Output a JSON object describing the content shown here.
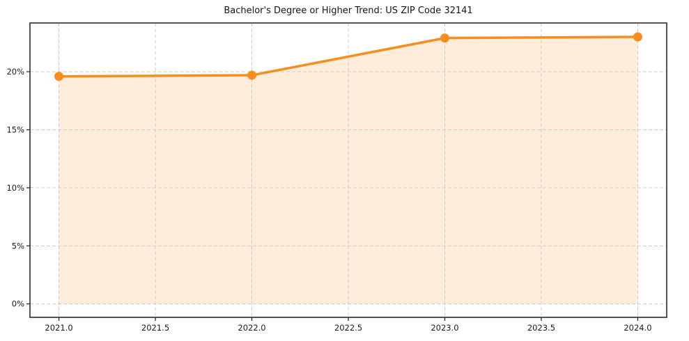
{
  "chart_data": {
    "type": "area",
    "title": "Bachelor's Degree or Higher Trend: US ZIP Code 32141",
    "x": [
      2021,
      2022,
      2023,
      2024
    ],
    "values": [
      19.6,
      19.7,
      22.9,
      23.0
    ],
    "x_ticks": {
      "values": [
        2021.0,
        2021.5,
        2022.0,
        2022.5,
        2023.0,
        2023.5,
        2024.0
      ],
      "labels": [
        "2021.0",
        "2021.5",
        "2022.0",
        "2022.5",
        "2023.0",
        "2023.5",
        "2024.0"
      ]
    },
    "y_ticks": {
      "values": [
        0,
        5,
        10,
        15,
        20
      ],
      "labels": [
        "0%",
        "5%",
        "10%",
        "15%",
        "20%"
      ]
    },
    "xlim": [
      2020.85,
      2024.15
    ],
    "ylim": [
      -1.16,
      24.2
    ],
    "grid": true,
    "grid_style": "dashed",
    "legend": "none",
    "colors": {
      "line": "#f68d1e",
      "fill": "#fdecd9",
      "grid": "#cccccc",
      "spine": "#2b2b2b",
      "tick_label": "#1a1a1a",
      "background": "#ffffff"
    }
  }
}
